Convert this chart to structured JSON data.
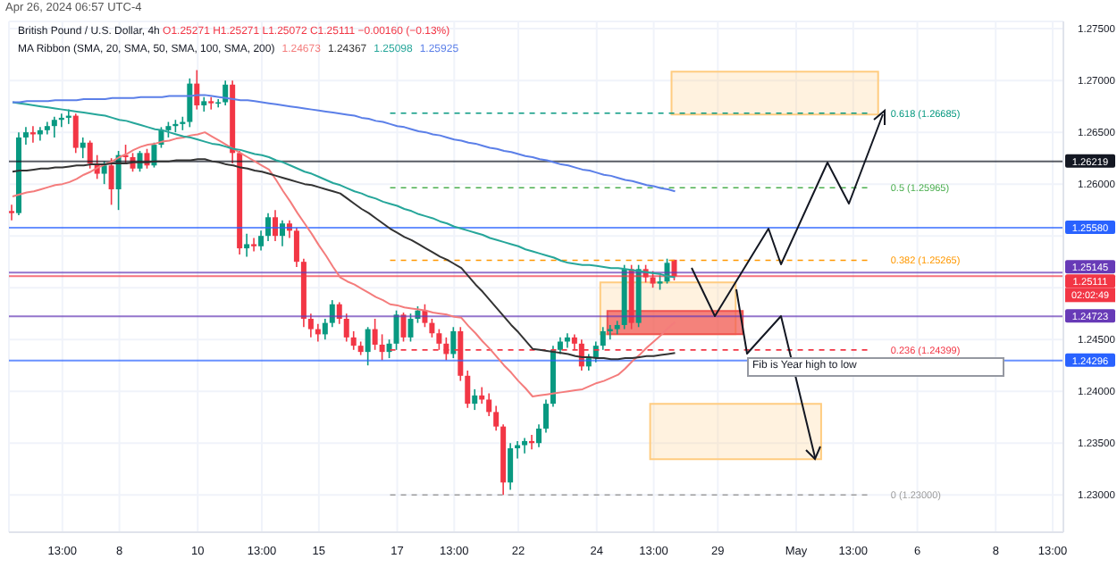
{
  "chart_data": {
    "type": "candlestick",
    "title": "British Pound / U.S. Dollar, 4h",
    "subtitle": "O1.25271 H1.25271 L1.25072 C1.25111 −0.00160 (−0.13%)",
    "annotations": [
      "Apr 26, 2024 06:57 UTC-4",
      "MA Ribbon (SMA, 20, SMA, 50, SMA, 100, SMA, 200)",
      "Fib is Year high to low",
      "02:02:49"
    ],
    "categories": [
      null,
      null,
      null,
      null,
      null,
      null,
      null,
      "13:00",
      null,
      null,
      null,
      null,
      null,
      null,
      null,
      "8",
      null,
      null,
      null,
      null,
      null,
      null,
      null,
      null,
      null,
      null,
      "10",
      null,
      null,
      null,
      null,
      null,
      null,
      null,
      null,
      "13:00",
      null,
      null,
      null,
      null,
      null,
      null,
      null,
      "15",
      null,
      null,
      null,
      null,
      null,
      null,
      null,
      null,
      null,
      null,
      "17",
      null,
      null,
      null,
      null,
      null,
      null,
      null,
      "13:00",
      null,
      null,
      null,
      null,
      null,
      null,
      null,
      null,
      "22",
      null,
      null,
      null,
      null,
      null,
      null,
      null,
      null,
      null,
      null,
      "24",
      null,
      null,
      null,
      null,
      null,
      null,
      null,
      "13:00",
      null,
      null,
      null,
      null,
      null,
      null,
      null,
      null,
      "29",
      null,
      null,
      null,
      null,
      null,
      null,
      null,
      null,
      null,
      null,
      "May",
      null,
      null,
      null,
      null,
      null,
      null,
      null,
      "13:00",
      null,
      null,
      null,
      null,
      null,
      null,
      null,
      null,
      "6",
      null,
      null,
      null,
      null,
      null,
      null,
      null,
      null,
      null,
      null,
      "8",
      null,
      null,
      null,
      null,
      null,
      null,
      null,
      "13:00",
      null
    ],
    "ohlc": [
      [
        1.2574,
        1.258,
        1.2565,
        1.2572
      ],
      [
        1.2572,
        1.265,
        1.257,
        1.2645
      ],
      [
        1.2645,
        1.2655,
        1.2638,
        1.265
      ],
      [
        1.265,
        1.2656,
        1.264,
        1.2648
      ],
      [
        1.2648,
        1.2655,
        1.2642,
        1.2652
      ],
      [
        1.2652,
        1.266,
        1.2648,
        1.2656
      ],
      [
        1.2656,
        1.2665,
        1.2645,
        1.2662
      ],
      [
        1.2662,
        1.2668,
        1.2655,
        1.2664
      ],
      [
        1.2664,
        1.2672,
        1.2658,
        1.2666
      ],
      [
        1.2666,
        1.2668,
        1.263,
        1.2635
      ],
      [
        1.2635,
        1.2645,
        1.2625,
        1.264
      ],
      [
        1.264,
        1.2642,
        1.2615,
        1.262
      ],
      [
        1.262,
        1.2628,
        1.2605,
        1.261
      ],
      [
        1.261,
        1.2622,
        1.26,
        1.2618
      ],
      [
        1.2618,
        1.2625,
        1.258,
        1.2595
      ],
      [
        1.2595,
        1.2632,
        1.2575,
        1.2628
      ],
      [
        1.2628,
        1.2638,
        1.262,
        1.2626
      ],
      [
        1.2626,
        1.263,
        1.2612,
        1.2615
      ],
      [
        1.2615,
        1.2632,
        1.2612,
        1.263
      ],
      [
        1.263,
        1.2634,
        1.2615,
        1.2618
      ],
      [
        1.2618,
        1.264,
        1.2616,
        1.2638
      ],
      [
        1.2638,
        1.2655,
        1.2635,
        1.2652
      ],
      [
        1.2652,
        1.266,
        1.2645,
        1.2656
      ],
      [
        1.2656,
        1.2662,
        1.265,
        1.2658
      ],
      [
        1.2658,
        1.2665,
        1.2652,
        1.266
      ],
      [
        1.266,
        1.2702,
        1.2655,
        1.2697
      ],
      [
        1.2697,
        1.271,
        1.2672,
        1.2676
      ],
      [
        1.2676,
        1.2684,
        1.267,
        1.268
      ],
      [
        1.268,
        1.2684,
        1.2672,
        1.2678
      ],
      [
        1.2678,
        1.2682,
        1.2674,
        1.2679
      ],
      [
        1.2679,
        1.27,
        1.2676,
        1.2696
      ],
      [
        1.2696,
        1.27,
        1.262,
        1.263
      ],
      [
        1.263,
        1.2632,
        1.2532,
        1.2538
      ],
      [
        1.2538,
        1.2552,
        1.253,
        1.2542
      ],
      [
        1.2542,
        1.2548,
        1.2535,
        1.254
      ],
      [
        1.254,
        1.2555,
        1.2536,
        1.255
      ],
      [
        1.255,
        1.2572,
        1.2545,
        1.2568
      ],
      [
        1.2568,
        1.2575,
        1.2545,
        1.255
      ],
      [
        1.255,
        1.2565,
        1.254,
        1.2562
      ],
      [
        1.2562,
        1.2565,
        1.2548,
        1.2555
      ],
      [
        1.2555,
        1.2558,
        1.252,
        1.2525
      ],
      [
        1.2525,
        1.2528,
        1.2462,
        1.247
      ],
      [
        1.247,
        1.2475,
        1.2452,
        1.246
      ],
      [
        1.246,
        1.2465,
        1.2448,
        1.2455
      ],
      [
        1.2455,
        1.247,
        1.245,
        1.2466
      ],
      [
        1.2466,
        1.2488,
        1.2462,
        1.2484
      ],
      [
        1.2484,
        1.2486,
        1.2465,
        1.247
      ],
      [
        1.247,
        1.2475,
        1.2448,
        1.2452
      ],
      [
        1.2452,
        1.2458,
        1.244,
        1.2444
      ],
      [
        1.2444,
        1.2448,
        1.2435,
        1.2438
      ],
      [
        1.2438,
        1.2462,
        1.2425,
        1.246
      ],
      [
        1.246,
        1.247,
        1.244,
        1.2445
      ],
      [
        1.2445,
        1.2455,
        1.243,
        1.2438
      ],
      [
        1.2438,
        1.245,
        1.2432,
        1.2446
      ],
      [
        1.2446,
        1.2478,
        1.244,
        1.2474
      ],
      [
        1.2474,
        1.2476,
        1.2448,
        1.2452
      ],
      [
        1.2452,
        1.2475,
        1.2448,
        1.247
      ],
      [
        1.247,
        1.2482,
        1.2466,
        1.2478
      ],
      [
        1.2478,
        1.2484,
        1.2462,
        1.2466
      ],
      [
        1.2466,
        1.247,
        1.2452,
        1.2456
      ],
      [
        1.2456,
        1.246,
        1.244,
        1.2446
      ],
      [
        1.2446,
        1.2452,
        1.243,
        1.2436
      ],
      [
        1.2436,
        1.2462,
        1.2432,
        1.2458
      ],
      [
        1.2458,
        1.2462,
        1.241,
        1.2415
      ],
      [
        1.2415,
        1.242,
        1.2384,
        1.2388
      ],
      [
        1.2388,
        1.2402,
        1.2382,
        1.2396
      ],
      [
        1.2396,
        1.2404,
        1.2388,
        1.2392
      ],
      [
        1.2392,
        1.2398,
        1.2376,
        1.238
      ],
      [
        1.238,
        1.2386,
        1.2362,
        1.2366
      ],
      [
        1.2366,
        1.2368,
        1.23,
        1.2312
      ],
      [
        1.2312,
        1.235,
        1.2305,
        1.2345
      ],
      [
        1.2345,
        1.2352,
        1.2335,
        1.2348
      ],
      [
        1.2348,
        1.2355,
        1.234,
        1.2352
      ],
      [
        1.2352,
        1.2358,
        1.2344,
        1.235
      ],
      [
        1.235,
        1.2368,
        1.2346,
        1.2364
      ],
      [
        1.2364,
        1.2392,
        1.236,
        1.2388
      ],
      [
        1.2388,
        1.2444,
        1.2385,
        1.244
      ],
      [
        1.244,
        1.2452,
        1.2436,
        1.2448
      ],
      [
        1.2448,
        1.2456,
        1.2442,
        1.2452
      ],
      [
        1.2452,
        1.2455,
        1.244,
        1.2446
      ],
      [
        1.2446,
        1.245,
        1.242,
        1.2424
      ],
      [
        1.2424,
        1.2436,
        1.242,
        1.2432
      ],
      [
        1.2432,
        1.2448,
        1.2428,
        1.2444
      ],
      [
        1.2444,
        1.2462,
        1.244,
        1.2458
      ],
      [
        1.2458,
        1.2464,
        1.245,
        1.246
      ],
      [
        1.246,
        1.2468,
        1.2455,
        1.2464
      ],
      [
        1.2464,
        1.2522,
        1.246,
        1.2518
      ],
      [
        1.2518,
        1.2522,
        1.246,
        1.2466
      ],
      [
        1.2466,
        1.2522,
        1.2462,
        1.2518
      ],
      [
        1.2518,
        1.2522,
        1.2505,
        1.251
      ],
      [
        1.251,
        1.2516,
        1.25,
        1.2504
      ],
      [
        1.2504,
        1.2512,
        1.2498,
        1.2506
      ],
      [
        1.2506,
        1.2528,
        1.2504,
        1.2524
      ],
      [
        1.2527,
        1.2527,
        1.2507,
        1.2511
      ],
      null,
      null,
      null,
      null,
      null,
      null,
      null,
      null,
      null,
      null,
      null,
      null,
      null,
      null,
      null,
      null,
      null,
      null,
      null,
      null,
      null,
      null,
      null,
      null,
      null,
      null,
      null,
      null,
      null,
      null,
      null,
      null,
      null,
      null,
      null,
      null,
      null,
      null,
      null,
      null,
      null,
      null,
      null,
      null,
      null,
      null,
      null,
      null,
      null,
      null,
      null,
      null,
      null,
      null
    ],
    "series": [
      {
        "type": "line",
        "name": "1.24673",
        "color": "#f47c7c",
        "values": [
          1.2588,
          1.259,
          1.2592,
          1.2593,
          1.2595,
          1.2597,
          1.2599,
          1.26,
          1.2602,
          1.2605,
          1.2609,
          1.2612,
          1.2616,
          1.2619,
          1.2622,
          1.2626,
          1.2629,
          1.2633,
          1.2636,
          1.2638,
          1.2639,
          1.2641,
          1.2642,
          1.2644,
          1.2645,
          1.2647,
          1.2648,
          1.265,
          1.2646,
          1.2642,
          1.2638,
          1.2634,
          1.263,
          1.2626,
          1.2622,
          1.2618,
          1.2614,
          1.2604,
          1.2593,
          1.2583,
          1.2572,
          1.2562,
          1.2552,
          1.2541,
          1.2531,
          1.252,
          1.251,
          1.2506,
          1.2503,
          1.2499,
          1.2495,
          1.2491,
          1.2488,
          1.2484,
          1.2483,
          1.2481,
          1.248,
          1.2479,
          1.2478,
          1.2476,
          1.2475,
          1.2474,
          1.2472,
          1.2471,
          1.2463,
          1.2456,
          1.2448,
          1.2441,
          1.2433,
          1.2425,
          1.2418,
          1.241,
          1.2403,
          1.2395,
          1.2396,
          1.2397,
          1.2398,
          1.2399,
          1.24,
          1.2401,
          1.2402,
          1.2405,
          1.2408,
          1.241,
          1.2413,
          1.2416,
          1.2422,
          1.2429,
          1.2435,
          1.2442,
          1.2448,
          1.2454,
          1.2461,
          1.2467,
          null,
          null,
          null,
          null,
          null,
          null,
          null,
          null,
          null,
          null,
          null,
          null,
          null,
          null,
          null,
          null,
          null,
          null,
          null,
          null,
          null,
          null,
          null,
          null,
          null,
          null,
          null,
          null,
          null,
          null,
          null,
          null,
          null,
          null,
          null,
          null,
          null,
          null,
          null,
          null,
          null,
          null,
          null,
          null,
          null,
          null,
          null,
          null,
          null,
          null,
          null,
          null,
          null,
          null
        ]
      },
      {
        "type": "line",
        "name": "1.24367",
        "color": "#333333",
        "values": [
          1.2612,
          1.2613,
          1.2613,
          1.2614,
          1.2615,
          1.2615,
          1.2616,
          1.2616,
          1.2617,
          1.2618,
          1.2618,
          1.2619,
          1.2619,
          1.2619,
          1.262,
          1.262,
          1.262,
          1.2621,
          1.2621,
          1.2621,
          1.2622,
          1.2622,
          1.2622,
          1.2623,
          1.2623,
          1.2623,
          1.2624,
          1.2624,
          1.2622,
          1.2621,
          1.2619,
          1.2618,
          1.2616,
          1.2615,
          1.2613,
          1.2612,
          1.261,
          1.2608,
          1.2606,
          1.2604,
          1.2602,
          1.26,
          1.2599,
          1.2597,
          1.2595,
          1.2593,
          1.2591,
          1.2586,
          1.2581,
          1.2576,
          1.2572,
          1.2567,
          1.2562,
          1.2557,
          1.2553,
          1.2549,
          1.2546,
          1.2542,
          1.2538,
          1.2534,
          1.253,
          1.2527,
          1.2523,
          1.2519,
          1.2511,
          1.2503,
          1.2496,
          1.2488,
          1.248,
          1.2472,
          1.2464,
          1.2457,
          1.2449,
          1.2441,
          1.244,
          1.2439,
          1.2438,
          1.2437,
          1.2436,
          1.2434,
          1.2433,
          1.2433,
          1.2432,
          1.2432,
          1.2431,
          1.2431,
          1.2432,
          1.2432,
          1.2433,
          1.2434,
          1.2434,
          1.2435,
          1.2436,
          1.2437,
          null,
          null,
          null,
          null,
          null,
          null,
          null,
          null,
          null,
          null,
          null,
          null,
          null,
          null,
          null,
          null,
          null,
          null,
          null,
          null,
          null,
          null,
          null,
          null,
          null,
          null,
          null,
          null,
          null,
          null,
          null,
          null,
          null,
          null,
          null,
          null,
          null,
          null,
          null,
          null,
          null,
          null,
          null,
          null,
          null,
          null,
          null,
          null,
          null,
          null,
          null,
          null,
          null,
          null
        ]
      },
      {
        "type": "line",
        "name": "1.25098",
        "color": "#26a69a",
        "values": [
          1.2679,
          1.2678,
          1.2677,
          1.2676,
          1.2675,
          1.2674,
          1.2673,
          1.2672,
          1.2671,
          1.267,
          1.2669,
          1.2668,
          1.2667,
          1.2666,
          1.2664,
          1.2662,
          1.2661,
          1.2659,
          1.2657,
          1.2655,
          1.2653,
          1.2652,
          1.265,
          1.2648,
          1.2646,
          1.2645,
          1.2643,
          1.2641,
          1.2639,
          1.2638,
          1.2636,
          1.2634,
          1.2633,
          1.2631,
          1.2629,
          1.2628,
          1.2626,
          1.2623,
          1.2621,
          1.2618,
          1.2615,
          1.2612,
          1.261,
          1.2607,
          1.2604,
          1.2601,
          1.2599,
          1.2596,
          1.2593,
          1.2591,
          1.2588,
          1.2586,
          1.2583,
          1.2581,
          1.2579,
          1.2576,
          1.2574,
          1.2571,
          1.2569,
          1.2567,
          1.2564,
          1.2562,
          1.2559,
          1.2557,
          1.2555,
          1.2553,
          1.2551,
          1.2548,
          1.2546,
          1.2544,
          1.2542,
          1.254,
          1.2537,
          1.2535,
          1.2533,
          1.2531,
          1.2529,
          1.2526,
          1.2524,
          1.2523,
          1.2522,
          1.2522,
          1.2521,
          1.252,
          1.2519,
          1.2519,
          1.2518,
          1.2517,
          1.2516,
          1.2515,
          1.2514,
          1.2513,
          1.2511,
          1.251,
          null,
          null,
          null,
          null,
          null,
          null,
          null,
          null,
          null,
          null,
          null,
          null,
          null,
          null,
          null,
          null,
          null,
          null,
          null,
          null,
          null,
          null,
          null,
          null,
          null,
          null,
          null,
          null,
          null,
          null,
          null,
          null,
          null,
          null,
          null,
          null,
          null,
          null,
          null,
          null,
          null,
          null,
          null,
          null,
          null,
          null,
          null,
          null,
          null,
          null,
          null,
          null,
          null,
          null
        ]
      },
      {
        "type": "line",
        "name": "1.25925",
        "color": "#5b7fe8",
        "values": [
          1.2679,
          1.2679,
          1.268,
          1.268,
          1.268,
          1.268,
          1.2681,
          1.2681,
          1.2681,
          1.2681,
          1.2682,
          1.2682,
          1.2682,
          1.2682,
          1.2683,
          1.2683,
          1.2683,
          1.2683,
          1.2684,
          1.2684,
          1.2684,
          1.2684,
          1.2685,
          1.2685,
          1.2685,
          1.2685,
          1.2686,
          1.2686,
          1.2685,
          1.2684,
          1.2683,
          1.2682,
          1.2681,
          1.2681,
          1.268,
          1.2679,
          1.2678,
          1.2677,
          1.2676,
          1.2675,
          1.2674,
          1.2673,
          1.2672,
          1.2671,
          1.267,
          1.2669,
          1.2668,
          1.2667,
          1.2666,
          1.2664,
          1.2663,
          1.2661,
          1.266,
          1.2658,
          1.2656,
          1.2655,
          1.2653,
          1.2651,
          1.265,
          1.2648,
          1.2647,
          1.2645,
          1.2643,
          1.2642,
          1.264,
          1.2639,
          1.2637,
          1.2635,
          1.2634,
          1.2632,
          1.2631,
          1.2629,
          1.2627,
          1.2626,
          1.2624,
          1.2623,
          1.2621,
          1.2619,
          1.2618,
          1.2616,
          1.2614,
          1.2613,
          1.2611,
          1.2609,
          1.2608,
          1.2606,
          1.2604,
          1.2603,
          1.2601,
          1.2599,
          1.2598,
          1.2596,
          1.2595,
          1.2593,
          null,
          null,
          null,
          null,
          null,
          null,
          null,
          null,
          null,
          null,
          null,
          null,
          null,
          null,
          null,
          null,
          null,
          null,
          null,
          null,
          null,
          null,
          null,
          null,
          null,
          null,
          null,
          null,
          null,
          null,
          null,
          null,
          null,
          null,
          null,
          null,
          null,
          null,
          null,
          null,
          null,
          null,
          null,
          null,
          null,
          null,
          null,
          null,
          null,
          null,
          null,
          null,
          null,
          null
        ]
      }
    ],
    "ylim": [
      1.2264,
      1.2757
    ],
    "yticks": [
      {
        "value": 1.23,
        "label": "1.23000"
      },
      {
        "value": 1.235,
        "label": "1.23500"
      },
      {
        "value": 1.24,
        "label": "1.24000"
      },
      {
        "value": 1.245,
        "label": "1.24500"
      },
      {
        "value": 1.25,
        "label": null
      },
      {
        "value": 1.255,
        "label": null
      },
      {
        "value": 1.26,
        "label": "1.26000"
      },
      {
        "value": 1.265,
        "label": "1.26500"
      },
      {
        "value": 1.27,
        "label": "1.27000"
      },
      {
        "value": 1.275,
        "label": "1.27500"
      }
    ],
    "ref_lines": [
      {
        "axis": "y",
        "value": 1.26219,
        "label": "1.26219",
        "color": "#131722",
        "line_style": "solid"
      },
      {
        "axis": "y",
        "value": 1.2558,
        "label": "1.25580",
        "color": "#2962ff",
        "line_style": "solid"
      },
      {
        "axis": "y",
        "value": 1.25145,
        "label": "1.25145",
        "color": "#673ab7",
        "line_style": "solid"
      },
      {
        "axis": "y",
        "value": 1.25111,
        "label": "1.25111",
        "color": "#f23645",
        "line_style": "solid"
      },
      {
        "axis": "y",
        "value": 1.24723,
        "label": "1.24723",
        "color": "#673ab7",
        "line_style": "solid"
      },
      {
        "axis": "y",
        "value": 1.24296,
        "label": "1.24296",
        "color": "#2962ff",
        "line_style": "solid"
      },
      {
        "axis": "y",
        "value": 1.26685,
        "label": "0.618 (1.26685)",
        "color": "#089981",
        "line_style": "dashed"
      },
      {
        "axis": "y",
        "value": 1.25965,
        "label": "0.5 (1.25965)",
        "color": "#4caf50",
        "line_style": "dashed"
      },
      {
        "axis": "y",
        "value": 1.25265,
        "label": "0.382 (1.25265)",
        "color": "#ff9800",
        "line_style": "dashed"
      },
      {
        "axis": "y",
        "value": 1.24399,
        "label": "0.236 (1.24399)",
        "color": "#f23645",
        "line_style": "dashed"
      },
      {
        "axis": "y",
        "value": 1.23,
        "label": "0 (1.23000)",
        "color": "#9e9e9e",
        "line_style": "dashed"
      }
    ],
    "bands": [
      {
        "axis": "y",
        "from": 1.26672,
        "to": 1.27086,
        "color": "#ffcc80"
      },
      {
        "axis": "y",
        "from": 1.24552,
        "to": 1.25052,
        "color": "#ffcc80"
      },
      {
        "axis": "y",
        "from": 1.24552,
        "to": 1.24776,
        "color": "#ef5350"
      },
      {
        "axis": "y",
        "from": 1.23345,
        "to": 1.23879,
        "color": "#ffcc80"
      }
    ],
    "grid": true
  }
}
